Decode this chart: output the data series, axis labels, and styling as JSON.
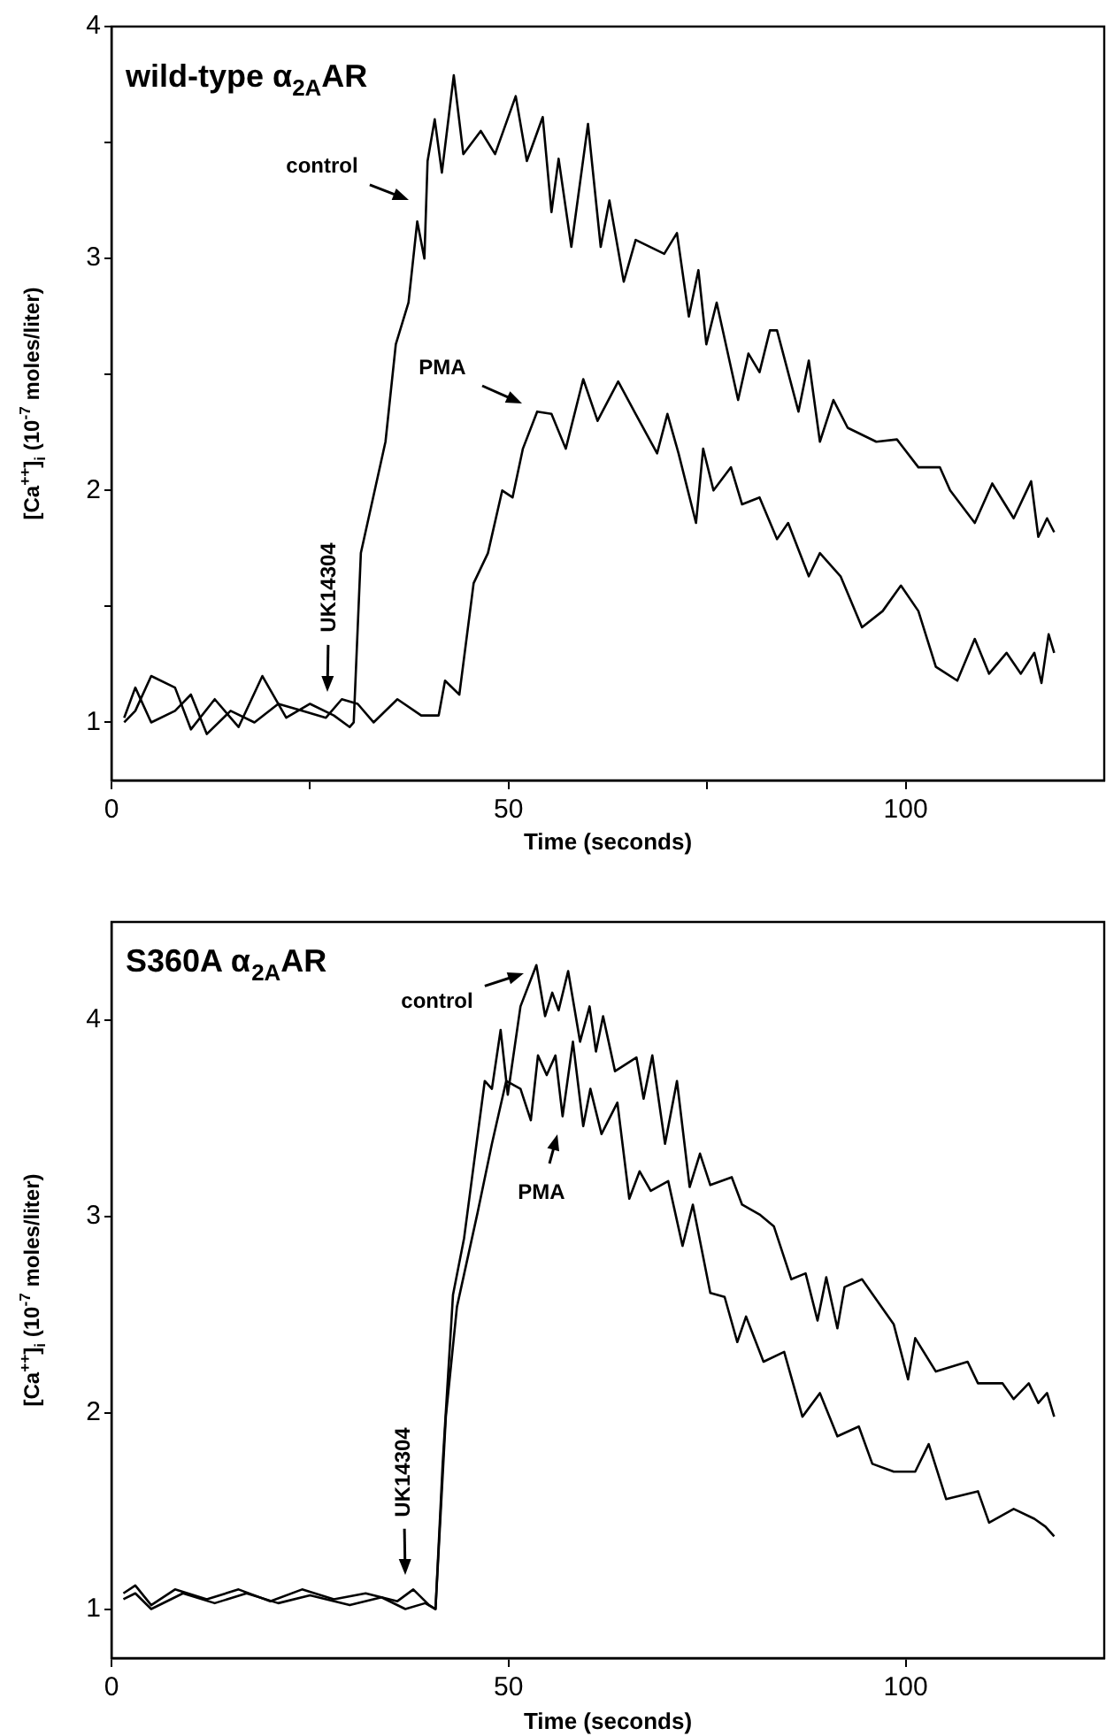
{
  "chart_data": [
    {
      "type": "line",
      "title": "wild-type α$_{2A}$AR",
      "xlabel": "Time (seconds)",
      "ylabel": "[Ca$^{++}$]$_{i}$ (10$^{-7}$ moles/liter)",
      "xlim": [
        0,
        125
      ],
      "ylim": [
        0.75,
        4
      ],
      "xticks": [
        0,
        {
          "value": 25,
          "label": null
        },
        50,
        {
          "value": 75,
          "label": null
        },
        100
      ],
      "yticks": [
        1,
        {
          "value": 1.5,
          "label": null
        },
        2,
        {
          "value": 2.5,
          "label": null
        },
        3,
        {
          "value": 3.5,
          "label": null
        },
        4
      ],
      "marker": "none",
      "line_style": "solid",
      "series": [
        {
          "color": "#000000",
          "x": [
            1.6,
            3,
            5,
            8,
            10,
            13,
            16,
            19,
            22,
            25,
            28,
            30,
            30.5,
            31.4,
            34.5,
            35.8,
            37.4,
            38.5,
            39.4,
            39.8,
            40.7,
            41.6,
            43.1,
            44.3,
            46.5,
            48.3,
            50.9,
            52.3,
            54.3,
            55.4,
            56.3,
            57.9,
            60,
            61.6,
            62.7,
            64.5,
            66,
            69.6,
            71.2,
            72.7,
            73.9,
            74.9,
            76.2,
            78.9,
            80.2,
            81.6,
            82.9,
            83.8,
            86.5,
            87.8,
            89.2,
            90.9,
            92.7,
            96.3,
            98.9,
            101.6,
            104.3,
            105.6,
            108.7,
            110.9,
            113.6,
            115.8,
            116.7,
            117.8,
            118.7
          ],
          "values": [
            1.0,
            1.05,
            1.2,
            1.15,
            0.97,
            1.1,
            0.98,
            1.2,
            1.02,
            1.08,
            1.03,
            0.98,
            1.0,
            1.73,
            2.21,
            2.63,
            2.81,
            3.16,
            3.0,
            3.42,
            3.6,
            3.37,
            3.79,
            3.45,
            3.55,
            3.45,
            3.7,
            3.42,
            3.61,
            3.2,
            3.43,
            3.05,
            3.58,
            3.05,
            3.25,
            2.9,
            3.08,
            3.02,
            3.11,
            2.75,
            2.95,
            2.63,
            2.81,
            2.39,
            2.59,
            2.51,
            2.69,
            2.69,
            2.34,
            2.56,
            2.21,
            2.39,
            2.27,
            2.21,
            2.22,
            2.1,
            2.1,
            2.0,
            1.86,
            2.03,
            1.88,
            2.04,
            1.8,
            1.88,
            1.82
          ]
        },
        {
          "color": "#000000",
          "x": [
            1.6,
            3,
            5,
            8,
            10,
            12,
            15,
            18,
            21,
            24,
            27,
            29,
            31,
            33,
            36,
            39,
            41.2,
            42,
            43.8,
            45.6,
            47.4,
            49.2,
            50.5,
            51.8,
            53.6,
            55.4,
            57.2,
            59.4,
            61.2,
            63.8,
            66,
            68.7,
            70,
            71.4,
            73.6,
            74.5,
            75.8,
            78,
            79.4,
            81.6,
            83.8,
            85.2,
            87.8,
            89.2,
            91.8,
            94.5,
            97.1,
            99.4,
            101.6,
            103.8,
            106.5,
            108.7,
            110.5,
            112.7,
            114.5,
            116.2,
            117.1,
            118,
            118.7
          ],
          "values": [
            1.02,
            1.15,
            1.0,
            1.05,
            1.12,
            0.95,
            1.05,
            1.0,
            1.08,
            1.05,
            1.02,
            1.1,
            1.08,
            1.0,
            1.1,
            1.03,
            1.03,
            1.18,
            1.12,
            1.6,
            1.73,
            2.0,
            1.97,
            2.18,
            2.34,
            2.33,
            2.18,
            2.48,
            2.3,
            2.47,
            2.33,
            2.16,
            2.33,
            2.16,
            1.86,
            2.18,
            2.0,
            2.1,
            1.94,
            1.97,
            1.79,
            1.86,
            1.63,
            1.73,
            1.63,
            1.41,
            1.48,
            1.59,
            1.48,
            1.24,
            1.18,
            1.36,
            1.21,
            1.3,
            1.21,
            1.3,
            1.17,
            1.38,
            1.3
          ]
        }
      ],
      "annotations": [
        "control",
        "PMA",
        "UK14304"
      ]
    },
    {
      "type": "line",
      "title": "S360A α$_{2A}$AR",
      "xlabel": "Time (seconds)",
      "ylabel": "[Ca$^{++}$]$_{i}$ (10$^{-7}$ moles/liter)",
      "xlim": [
        0,
        125
      ],
      "ylim": [
        0.75,
        4.5
      ],
      "xticks": [
        0,
        50,
        100
      ],
      "yticks": [
        1,
        2,
        3,
        4
      ],
      "marker": "none",
      "line_style": "solid",
      "series": [
        {
          "color": "#000000",
          "x": [
            1.5,
            3,
            5,
            8,
            12,
            16,
            20,
            24,
            28,
            32,
            36,
            38,
            40,
            40.8,
            41.7,
            43,
            44.4,
            47,
            47.9,
            49,
            49.9,
            51.5,
            53.5,
            54.6,
            55.5,
            56.3,
            57.5,
            59,
            60.2,
            61,
            61.9,
            63.4,
            66.1,
            67,
            68.1,
            69.7,
            71.2,
            72.8,
            74.1,
            75.4,
            78.1,
            79.4,
            81.6,
            83.4,
            85.6,
            87.4,
            88.9,
            90,
            91.4,
            92.3,
            94.5,
            98.5,
            100.3,
            101.2,
            103.8,
            107.8,
            109.1,
            112.2,
            113.6,
            115.5,
            116.7,
            117.8,
            118.7
          ],
          "values": [
            1.08,
            1.12,
            1.02,
            1.1,
            1.05,
            1.1,
            1.04,
            1.1,
            1.05,
            1.08,
            1.04,
            1.1,
            1.02,
            1.0,
            1.74,
            2.6,
            2.89,
            3.69,
            3.65,
            3.95,
            3.62,
            4.07,
            4.28,
            4.02,
            4.14,
            4.05,
            4.25,
            3.89,
            4.07,
            3.84,
            4.02,
            3.74,
            3.81,
            3.6,
            3.82,
            3.37,
            3.69,
            3.15,
            3.32,
            3.16,
            3.2,
            3.06,
            3.01,
            2.95,
            2.68,
            2.71,
            2.47,
            2.69,
            2.43,
            2.64,
            2.68,
            2.45,
            2.17,
            2.38,
            2.21,
            2.26,
            2.15,
            2.15,
            2.07,
            2.15,
            2.05,
            2.1,
            1.98
          ]
        },
        {
          "color": "#000000",
          "x": [
            1.5,
            3,
            5,
            9,
            13,
            17,
            21,
            25,
            30,
            34,
            37,
            39.5,
            40.8,
            42.1,
            43.5,
            46.1,
            47.9,
            49.7,
            51.5,
            52.8,
            53.7,
            54.8,
            55.9,
            56.8,
            58.1,
            59.4,
            60.3,
            61.7,
            63.7,
            65.2,
            66.5,
            67.9,
            70.1,
            71.9,
            73.2,
            75.4,
            77.2,
            78.8,
            79.9,
            82.1,
            84.7,
            87,
            89.2,
            91.4,
            94.1,
            95.8,
            98.5,
            101.2,
            102.9,
            105.1,
            109.1,
            110.5,
            113.6,
            116.2,
            117.6,
            118.7
          ],
          "values": [
            1.05,
            1.08,
            1.0,
            1.08,
            1.03,
            1.08,
            1.03,
            1.07,
            1.02,
            1.06,
            1.0,
            1.03,
            1.0,
            1.98,
            2.54,
            3.02,
            3.37,
            3.69,
            3.65,
            3.49,
            3.82,
            3.72,
            3.82,
            3.51,
            3.89,
            3.46,
            3.65,
            3.42,
            3.58,
            3.09,
            3.23,
            3.13,
            3.18,
            2.85,
            3.06,
            2.61,
            2.59,
            2.36,
            2.49,
            2.26,
            2.31,
            1.98,
            2.1,
            1.88,
            1.93,
            1.74,
            1.7,
            1.7,
            1.84,
            1.56,
            1.6,
            1.44,
            1.51,
            1.46,
            1.42,
            1.37
          ]
        }
      ],
      "annotations": [
        "control",
        "PMA",
        "UK14304"
      ]
    }
  ]
}
